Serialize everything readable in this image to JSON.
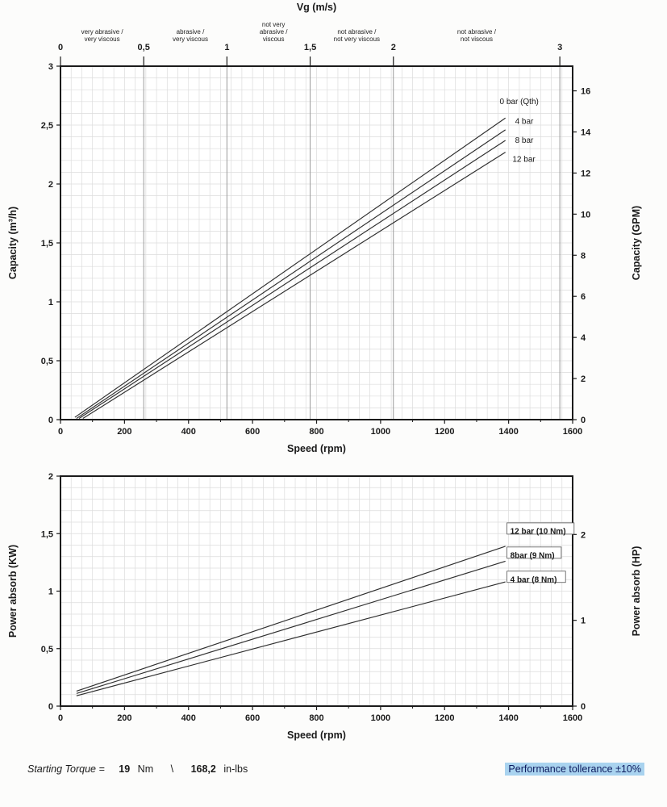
{
  "footer": {
    "starting_torque_label": "Starting Torque =",
    "torque_nm": "19",
    "nm_unit": "Nm",
    "separator": "\\",
    "torque_inlbs": "168,2",
    "inlbs_unit": "in-lbs",
    "tolerance": "Performance tollerance ±10%",
    "tolerance_bg": "#a9d3ef"
  },
  "chart_data": [
    {
      "type": "line",
      "title": "",
      "xlabel": "Speed (rpm)",
      "ylabel": "Capacity (m³/h)",
      "ylabel_right": "Capacity (GPM)",
      "xlim": [
        0,
        1600
      ],
      "xticks": [
        0,
        200,
        400,
        600,
        800,
        1000,
        1200,
        1400,
        1600
      ],
      "ylim": [
        0,
        3
      ],
      "yticks": [
        {
          "v": 0,
          "label": "0"
        },
        {
          "v": 0.5,
          "label": "0,5"
        },
        {
          "v": 1,
          "label": "1"
        },
        {
          "v": 1.5,
          "label": "1,5"
        },
        {
          "v": 2,
          "label": "2"
        },
        {
          "v": 2.5,
          "label": "2,5"
        },
        {
          "v": 3,
          "label": "3"
        }
      ],
      "right_axis": {
        "max": 17.2,
        "ticks": [
          0,
          2,
          4,
          6,
          8,
          10,
          12,
          14,
          16
        ]
      },
      "top_axis": {
        "title": "Vg (m/s)",
        "rpm_per_unit": 520,
        "ticks": [
          {
            "v": 0,
            "label": "0"
          },
          {
            "v": 0.5,
            "label": "0,5"
          },
          {
            "v": 1,
            "label": "1"
          },
          {
            "v": 1.5,
            "label": "1,5"
          },
          {
            "v": 2,
            "label": "2"
          },
          {
            "v": 3,
            "label": "3"
          }
        ],
        "zones": [
          {
            "center": 0.25,
            "lines": [
              "very abrasive /",
              "very viscous"
            ]
          },
          {
            "center": 0.78,
            "lines": [
              "abrasive /",
              "very viscous"
            ]
          },
          {
            "center": 1.28,
            "lines": [
              "not very",
              "abrasive /",
              "viscous"
            ]
          },
          {
            "center": 1.78,
            "lines": [
              "not  abrasive /",
              "not very viscous"
            ]
          },
          {
            "center": 2.5,
            "lines": [
              "not  abrasive /",
              "not  viscous"
            ]
          }
        ]
      },
      "series": [
        {
          "name": "0 bar (Qth)",
          "points": [
            [
              45,
              0.02
            ],
            [
              1390,
              2.56
            ]
          ],
          "label_at": [
            1372,
            2.7
          ]
        },
        {
          "name": "4 bar",
          "points": [
            [
              50,
              0.01
            ],
            [
              1390,
              2.46
            ]
          ],
          "label_at": [
            1420,
            2.53
          ]
        },
        {
          "name": "8 bar",
          "points": [
            [
              58,
              0.01
            ],
            [
              1390,
              2.37
            ]
          ],
          "label_at": [
            1420,
            2.37
          ]
        },
        {
          "name": "12 bar",
          "points": [
            [
              70,
              0.01
            ],
            [
              1390,
              2.27
            ]
          ],
          "label_at": [
            1412,
            2.21
          ]
        }
      ],
      "series_labels_boxed": false
    },
    {
      "type": "line",
      "title": "",
      "xlabel": "Speed (rpm)",
      "ylabel": "Power absorb (KW)",
      "ylabel_right": "Power absorb (HP)",
      "xlim": [
        0,
        1600
      ],
      "xticks": [
        0,
        200,
        400,
        600,
        800,
        1000,
        1200,
        1400,
        1600
      ],
      "ylim": [
        0,
        2
      ],
      "yticks": [
        {
          "v": 0,
          "label": "0"
        },
        {
          "v": 0.5,
          "label": "0,5"
        },
        {
          "v": 1,
          "label": "1"
        },
        {
          "v": 1.5,
          "label": "1,5"
        },
        {
          "v": 2,
          "label": "2"
        }
      ],
      "right_axis": {
        "max": 2.68,
        "ticks": [
          0,
          1,
          2
        ]
      },
      "series": [
        {
          "name": "12 bar (10 Nm)",
          "points": [
            [
              50,
              0.13
            ],
            [
              1390,
              1.39
            ]
          ],
          "label_at": [
            1405,
            1.52
          ]
        },
        {
          "name": "8bar (9 Nm)",
          "points": [
            [
              50,
              0.11
            ],
            [
              1390,
              1.26
            ]
          ],
          "label_at": [
            1405,
            1.31
          ]
        },
        {
          "name": "4 bar (8 Nm)",
          "points": [
            [
              50,
              0.09
            ],
            [
              1390,
              1.08
            ]
          ],
          "label_at": [
            1405,
            1.1
          ]
        }
      ],
      "series_labels_boxed": true
    }
  ]
}
